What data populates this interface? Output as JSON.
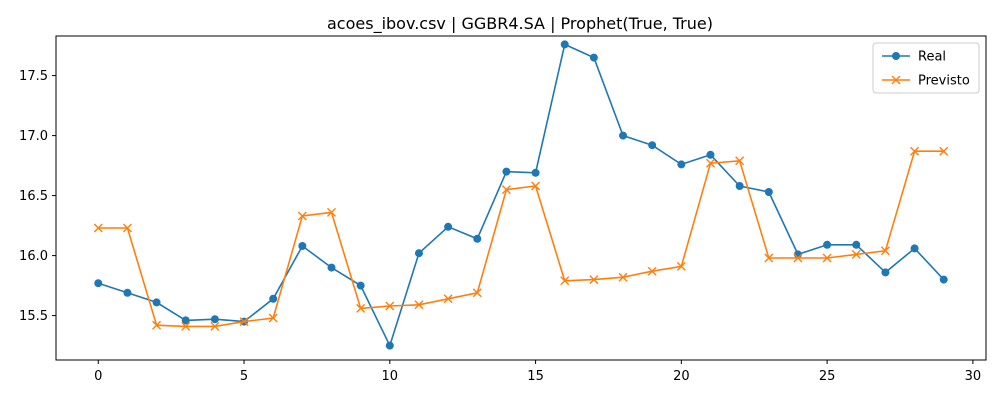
{
  "chart_data": {
    "type": "line",
    "title": "acoes_ibov.csv | GGBR4.SA | Prophet(True, True)",
    "xlabel": "",
    "ylabel": "",
    "xlim": [
      -1.45,
      30.45
    ],
    "ylim": [
      15.13,
      17.83
    ],
    "x_ticks": [
      0,
      5,
      10,
      15,
      20,
      25,
      30
    ],
    "x_tick_labels": [
      "0",
      "5",
      "10",
      "15",
      "20",
      "25",
      "30"
    ],
    "y_ticks": [
      15.5,
      16.0,
      16.5,
      17.0,
      17.5
    ],
    "y_tick_labels": [
      "15.5",
      "16.0",
      "16.5",
      "17.0",
      "17.5"
    ],
    "grid": false,
    "legend_position": "top-right",
    "x": [
      0,
      1,
      2,
      3,
      4,
      5,
      6,
      7,
      8,
      9,
      10,
      11,
      12,
      13,
      14,
      15,
      16,
      17,
      18,
      19,
      20,
      21,
      22,
      23,
      24,
      25,
      26,
      27,
      28,
      29
    ],
    "series": [
      {
        "name": "Real",
        "color": "#1f77b4",
        "marker": "circle",
        "values": [
          15.77,
          15.69,
          15.61,
          15.46,
          15.47,
          15.45,
          15.64,
          16.08,
          15.9,
          15.75,
          15.25,
          16.02,
          16.24,
          16.14,
          16.7,
          16.69,
          17.76,
          17.65,
          17.0,
          16.92,
          16.76,
          16.84,
          16.58,
          16.53,
          16.01,
          16.09,
          16.09,
          15.86,
          16.06,
          15.8
        ]
      },
      {
        "name": "Previsto",
        "color": "#ff7f0e",
        "marker": "x",
        "values": [
          16.23,
          16.23,
          15.42,
          15.41,
          15.41,
          15.45,
          15.48,
          16.33,
          16.36,
          15.56,
          15.58,
          15.59,
          15.64,
          15.69,
          16.55,
          16.58,
          15.79,
          15.8,
          15.82,
          15.87,
          15.91,
          16.77,
          16.79,
          15.98,
          15.98,
          15.98,
          16.01,
          16.04,
          16.87,
          16.87
        ]
      }
    ]
  }
}
